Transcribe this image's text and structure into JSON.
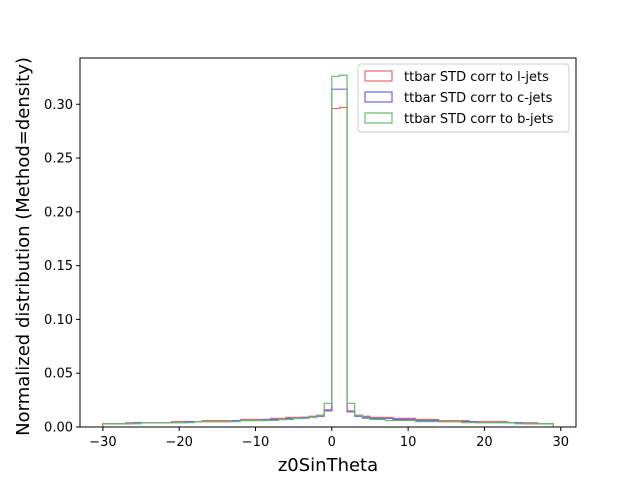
{
  "chart_data": {
    "type": "histogram-step",
    "xlabel": "z0SinTheta",
    "ylabel": "Normalized distribution (Method=density)",
    "xlim": [
      -33.0,
      32.0
    ],
    "ylim": [
      0,
      0.343
    ],
    "xticks": [
      -30,
      -20,
      -10,
      0,
      10,
      20,
      30
    ],
    "yticks": [
      0.0,
      0.05,
      0.1,
      0.15,
      0.2,
      0.25,
      0.3
    ],
    "ytick_labels": [
      "0.00",
      "0.05",
      "0.10",
      "0.15",
      "0.20",
      "0.25",
      "0.30"
    ],
    "grid": false,
    "legend_position": "top-right",
    "bin_edges": [
      -30,
      -29,
      -28,
      -27,
      -26,
      -25,
      -24,
      -23,
      -22,
      -21,
      -20,
      -19,
      -18,
      -17,
      -16,
      -15,
      -14,
      -13,
      -12,
      -11,
      -10,
      -9,
      -8,
      -7,
      -6,
      -5,
      -4,
      -3,
      -2,
      -1,
      0,
      1,
      2,
      3,
      4,
      5,
      6,
      7,
      8,
      9,
      10,
      11,
      12,
      13,
      14,
      15,
      16,
      17,
      18,
      19,
      20,
      21,
      22,
      23,
      24,
      25,
      26,
      27,
      28,
      29
    ],
    "series": [
      {
        "name": "ttbar STD corr to l-jets",
        "color": "#ee6666",
        "values": [
          0.003,
          0.003,
          0.003,
          0.004,
          0.004,
          0.004,
          0.004,
          0.004,
          0.004,
          0.005,
          0.005,
          0.005,
          0.005,
          0.006,
          0.006,
          0.006,
          0.006,
          0.006,
          0.007,
          0.007,
          0.007,
          0.007,
          0.008,
          0.008,
          0.009,
          0.009,
          0.009,
          0.01,
          0.011,
          0.016,
          0.296,
          0.297,
          0.015,
          0.011,
          0.01,
          0.009,
          0.009,
          0.009,
          0.008,
          0.008,
          0.008,
          0.007,
          0.007,
          0.007,
          0.006,
          0.006,
          0.006,
          0.006,
          0.005,
          0.005,
          0.005,
          0.005,
          0.005,
          0.004,
          0.004,
          0.004,
          0.004,
          0.003,
          0.003
        ]
      },
      {
        "name": "ttbar STD corr to c-jets",
        "color": "#6666ee",
        "values": [
          0.003,
          0.003,
          0.003,
          0.003,
          0.004,
          0.004,
          0.004,
          0.004,
          0.004,
          0.004,
          0.004,
          0.005,
          0.005,
          0.005,
          0.005,
          0.005,
          0.005,
          0.006,
          0.006,
          0.006,
          0.006,
          0.007,
          0.007,
          0.007,
          0.008,
          0.008,
          0.009,
          0.009,
          0.01,
          0.015,
          0.314,
          0.314,
          0.014,
          0.01,
          0.009,
          0.008,
          0.008,
          0.008,
          0.007,
          0.007,
          0.007,
          0.006,
          0.006,
          0.006,
          0.005,
          0.005,
          0.005,
          0.005,
          0.005,
          0.004,
          0.004,
          0.004,
          0.004,
          0.004,
          0.004,
          0.003,
          0.003,
          0.003,
          0.003
        ]
      },
      {
        "name": "ttbar STD corr to b-jets",
        "color": "#66bb66",
        "values": [
          0.003,
          0.003,
          0.003,
          0.003,
          0.003,
          0.004,
          0.004,
          0.004,
          0.004,
          0.004,
          0.004,
          0.004,
          0.005,
          0.005,
          0.005,
          0.005,
          0.005,
          0.005,
          0.006,
          0.006,
          0.006,
          0.006,
          0.006,
          0.007,
          0.007,
          0.008,
          0.008,
          0.009,
          0.011,
          0.022,
          0.326,
          0.327,
          0.022,
          0.011,
          0.008,
          0.007,
          0.007,
          0.006,
          0.006,
          0.006,
          0.006,
          0.005,
          0.005,
          0.005,
          0.005,
          0.005,
          0.005,
          0.004,
          0.004,
          0.004,
          0.004,
          0.004,
          0.004,
          0.004,
          0.003,
          0.003,
          0.003,
          0.003,
          0.003
        ]
      }
    ]
  }
}
